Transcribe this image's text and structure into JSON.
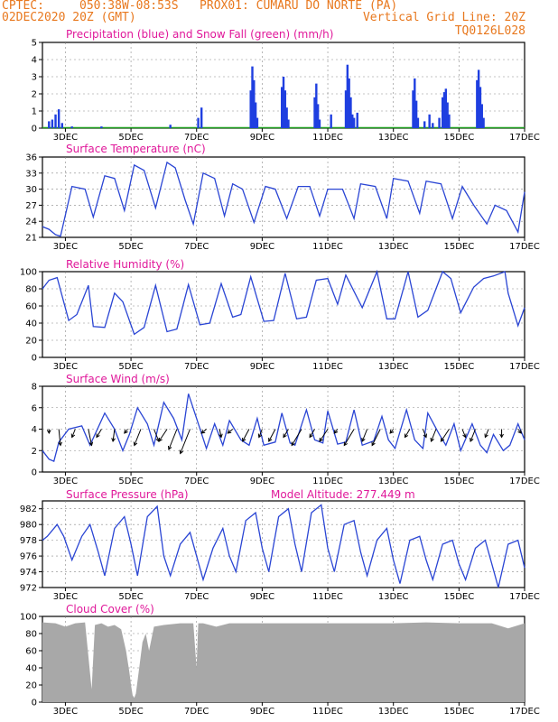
{
  "header": {
    "source": "CPTEC:",
    "location": "050:38W-08:53S   PROX01: CUMARU DO NORTE (PA)",
    "run": "02DEC2020 20Z (GMT)",
    "grid": "Vertical Grid Line: 20Z",
    "model": "TQ0126L028"
  },
  "x_ticks": [
    "3DEC",
    "5DEC",
    "7DEC",
    "9DEC",
    "11DEC",
    "13DEC",
    "15DEC",
    "17DEC"
  ],
  "chart_data": [
    {
      "id": "precip",
      "type": "bar",
      "title": "Precipitation (blue) and Snow Fall (green) (mm/h)",
      "ylim": [
        0,
        5
      ],
      "yticks": [
        0,
        1,
        2,
        3,
        4,
        5
      ],
      "color": "#1f3fe0",
      "snow_color": "#1fa01f",
      "x_range": [
        2.3,
        17.0
      ],
      "events": [
        {
          "x": 2.5,
          "v": 0.4
        },
        {
          "x": 2.6,
          "v": 0.5
        },
        {
          "x": 2.7,
          "v": 0.8
        },
        {
          "x": 2.8,
          "v": 1.1
        },
        {
          "x": 2.9,
          "v": 0.3
        },
        {
          "x": 3.2,
          "v": 0.1
        },
        {
          "x": 4.1,
          "v": 0.1
        },
        {
          "x": 6.2,
          "v": 0.2
        },
        {
          "x": 7.05,
          "v": 0.6
        },
        {
          "x": 7.15,
          "v": 1.2
        },
        {
          "x": 8.65,
          "v": 2.2
        },
        {
          "x": 8.7,
          "v": 3.6
        },
        {
          "x": 8.75,
          "v": 2.8
        },
        {
          "x": 8.8,
          "v": 1.5
        },
        {
          "x": 8.85,
          "v": 0.6
        },
        {
          "x": 9.6,
          "v": 2.4
        },
        {
          "x": 9.65,
          "v": 3.0
        },
        {
          "x": 9.7,
          "v": 2.2
        },
        {
          "x": 9.75,
          "v": 1.2
        },
        {
          "x": 9.8,
          "v": 0.5
        },
        {
          "x": 10.6,
          "v": 1.8
        },
        {
          "x": 10.65,
          "v": 2.6
        },
        {
          "x": 10.7,
          "v": 1.4
        },
        {
          "x": 10.75,
          "v": 0.5
        },
        {
          "x": 11.1,
          "v": 0.8
        },
        {
          "x": 11.55,
          "v": 2.2
        },
        {
          "x": 11.6,
          "v": 3.7
        },
        {
          "x": 11.65,
          "v": 2.9
        },
        {
          "x": 11.7,
          "v": 1.8
        },
        {
          "x": 11.75,
          "v": 0.8
        },
        {
          "x": 11.8,
          "v": 0.6
        },
        {
          "x": 11.9,
          "v": 0.9
        },
        {
          "x": 13.6,
          "v": 2.2
        },
        {
          "x": 13.65,
          "v": 2.9
        },
        {
          "x": 13.7,
          "v": 1.6
        },
        {
          "x": 13.75,
          "v": 0.6
        },
        {
          "x": 13.95,
          "v": 0.4
        },
        {
          "x": 14.1,
          "v": 0.8
        },
        {
          "x": 14.2,
          "v": 0.3
        },
        {
          "x": 14.4,
          "v": 0.6
        },
        {
          "x": 14.5,
          "v": 1.8
        },
        {
          "x": 14.55,
          "v": 2.1
        },
        {
          "x": 14.6,
          "v": 2.3
        },
        {
          "x": 14.65,
          "v": 1.5
        },
        {
          "x": 14.7,
          "v": 0.8
        },
        {
          "x": 15.55,
          "v": 2.8
        },
        {
          "x": 15.6,
          "v": 3.4
        },
        {
          "x": 15.65,
          "v": 2.4
        },
        {
          "x": 15.7,
          "v": 1.4
        },
        {
          "x": 15.75,
          "v": 0.6
        }
      ]
    },
    {
      "id": "temp",
      "type": "line",
      "title": "Surface Temperature (nC)",
      "ylim": [
        21,
        36
      ],
      "yticks": [
        21,
        24,
        27,
        30,
        33,
        36
      ],
      "color": "#2a45d4",
      "x": [
        2.3,
        2.5,
        2.7,
        2.85,
        3.2,
        3.6,
        3.85,
        4.2,
        4.5,
        4.8,
        5.1,
        5.4,
        5.75,
        6.1,
        6.35,
        6.65,
        6.9,
        7.2,
        7.55,
        7.85,
        8.1,
        8.4,
        8.75,
        9.1,
        9.4,
        9.75,
        10.1,
        10.45,
        10.75,
        11.0,
        11.45,
        11.8,
        12.0,
        12.45,
        12.8,
        13.0,
        13.45,
        13.8,
        14.0,
        14.45,
        14.8,
        15.1,
        15.45,
        15.85,
        16.1,
        16.45,
        16.8,
        17.0
      ],
      "y": [
        23,
        22.5,
        21.5,
        21.2,
        30.5,
        30,
        24.8,
        32.5,
        32,
        26,
        34.5,
        33.5,
        26.5,
        35,
        34,
        28,
        23.5,
        33,
        32,
        25,
        31,
        30,
        23.8,
        30.5,
        30,
        24.5,
        30.5,
        30.5,
        25,
        30,
        30,
        24.5,
        31,
        30.5,
        24.5,
        32,
        31.5,
        25.5,
        31.5,
        31,
        24.5,
        30.5,
        27,
        23.5,
        27,
        26,
        22,
        29.5
      ]
    },
    {
      "id": "rh",
      "type": "line",
      "title": "Relative Humidity (%)",
      "ylim": [
        0,
        100
      ],
      "yticks": [
        0,
        20,
        40,
        60,
        80,
        100
      ],
      "color": "#2a45d4",
      "x": [
        2.3,
        2.5,
        2.75,
        3.1,
        3.35,
        3.7,
        3.85,
        4.2,
        4.5,
        4.75,
        5.1,
        5.4,
        5.75,
        6.1,
        6.4,
        6.75,
        7.1,
        7.4,
        7.75,
        8.1,
        8.35,
        8.65,
        9.05,
        9.35,
        9.7,
        10.05,
        10.35,
        10.65,
        11.0,
        11.3,
        11.55,
        12.05,
        12.5,
        12.8,
        13.05,
        13.45,
        13.75,
        14.05,
        14.5,
        14.75,
        15.05,
        15.45,
        15.75,
        16.05,
        16.4,
        16.5,
        16.8,
        17.0
      ],
      "y": [
        80,
        90,
        93,
        43,
        50,
        84,
        36,
        35,
        75,
        65,
        27,
        35,
        84,
        30,
        33,
        85,
        38,
        40,
        86,
        47,
        50,
        94,
        42,
        43,
        98,
        45,
        47,
        90,
        92,
        62,
        96,
        58,
        100,
        45,
        45,
        100,
        47,
        55,
        100,
        92,
        52,
        82,
        92,
        95,
        100,
        75,
        37,
        58
      ]
    },
    {
      "id": "wind",
      "type": "line",
      "title": "Surface Wind (m/s)",
      "ylim": [
        0,
        8
      ],
      "yticks": [
        0,
        2,
        4,
        6,
        8
      ],
      "color": "#2a45d4",
      "x": [
        2.3,
        2.5,
        2.65,
        2.8,
        3.1,
        3.5,
        3.75,
        4.2,
        4.5,
        4.75,
        4.95,
        5.2,
        5.5,
        5.7,
        6.0,
        6.3,
        6.55,
        6.75,
        7.0,
        7.3,
        7.55,
        7.8,
        8.0,
        8.35,
        8.6,
        8.85,
        9.05,
        9.4,
        9.6,
        9.85,
        10.0,
        10.35,
        10.6,
        10.85,
        11.0,
        11.3,
        11.55,
        11.8,
        12.05,
        12.4,
        12.65,
        12.85,
        13.05,
        13.4,
        13.65,
        13.9,
        14.05,
        14.4,
        14.6,
        14.85,
        15.05,
        15.4,
        15.65,
        15.85,
        16.05,
        16.35,
        16.55,
        16.8,
        17.0
      ],
      "y": [
        2.0,
        1.2,
        1.0,
        2.8,
        4.0,
        4.3,
        2.5,
        5.5,
        4.0,
        2.0,
        3.5,
        6.0,
        4.5,
        2.5,
        6.5,
        5.0,
        3.0,
        7.3,
        5.0,
        2.2,
        4.5,
        2.5,
        4.8,
        3.0,
        2.5,
        5.0,
        2.5,
        2.8,
        5.5,
        2.7,
        2.5,
        5.8,
        3.0,
        2.7,
        5.7,
        2.6,
        2.8,
        5.8,
        2.5,
        2.9,
        5.2,
        3.0,
        2.2,
        5.8,
        3.0,
        2.2,
        5.5,
        3.5,
        2.5,
        4.5,
        2.0,
        4.5,
        2.5,
        1.8,
        3.5,
        2.0,
        2.5,
        4.5,
        3.0
      ]
    },
    {
      "id": "pres",
      "type": "line",
      "title": "Surface Pressure (hPa)",
      "annotation": "Model Altitude: 277.449 m",
      "ylim": [
        972,
        983
      ],
      "yticks": [
        972,
        974,
        976,
        978,
        980,
        982
      ],
      "color": "#2a45d4",
      "x": [
        2.3,
        2.45,
        2.75,
        2.95,
        3.2,
        3.5,
        3.75,
        4.0,
        4.2,
        4.5,
        4.8,
        5.0,
        5.2,
        5.5,
        5.8,
        6.0,
        6.2,
        6.5,
        6.8,
        7.0,
        7.2,
        7.5,
        7.8,
        8.0,
        8.2,
        8.5,
        8.8,
        9.0,
        9.2,
        9.5,
        9.8,
        10.0,
        10.2,
        10.5,
        10.8,
        11.0,
        11.2,
        11.5,
        11.8,
        12.0,
        12.2,
        12.5,
        12.8,
        13.0,
        13.2,
        13.5,
        13.8,
        14.0,
        14.2,
        14.5,
        14.8,
        15.0,
        15.2,
        15.5,
        15.8,
        16.0,
        16.2,
        16.5,
        16.8,
        17.0
      ],
      "y": [
        978.0,
        978.5,
        980.0,
        978.5,
        975.5,
        978.5,
        980.0,
        976.5,
        973.5,
        979.5,
        981.0,
        977.5,
        973.5,
        981.0,
        982.3,
        976.0,
        973.5,
        977.5,
        979.0,
        976.0,
        973.0,
        977.0,
        979.5,
        976.0,
        974.0,
        980.5,
        981.5,
        977.0,
        974.0,
        981.0,
        982.0,
        977.5,
        974.0,
        981.5,
        982.5,
        977.0,
        974.0,
        980.0,
        980.5,
        976.5,
        973.5,
        978.0,
        979.5,
        975.5,
        972.5,
        978.0,
        978.5,
        975.5,
        973.0,
        977.5,
        978.0,
        975.0,
        973.0,
        977.0,
        978.0,
        975.0,
        972.0,
        977.5,
        978.0,
        974.5
      ]
    },
    {
      "id": "cloud",
      "type": "area",
      "title": "Cloud Cover (%)",
      "ylim": [
        0,
        100
      ],
      "yticks": [
        0,
        20,
        40,
        60,
        80,
        100
      ],
      "color": "#a8a8a8",
      "x": [
        2.3,
        2.7,
        3.0,
        3.3,
        3.6,
        3.8,
        3.9,
        4.1,
        4.3,
        4.5,
        4.7,
        4.85,
        4.95,
        5.0,
        5.05,
        5.1,
        5.15,
        5.25,
        5.35,
        5.45,
        5.55,
        5.7,
        6.0,
        6.5,
        6.9,
        7.0,
        7.05,
        7.2,
        7.6,
        8.0,
        9.0,
        10.0,
        11.0,
        12.0,
        13.0,
        14.0,
        15.0,
        16.0,
        16.5,
        17.0
      ],
      "y": [
        93,
        92,
        88,
        92,
        93,
        15,
        90,
        92,
        88,
        90,
        85,
        60,
        35,
        20,
        8,
        5,
        10,
        40,
        70,
        80,
        60,
        88,
        90,
        92,
        92,
        40,
        92,
        92,
        88,
        92,
        92,
        92,
        92,
        92,
        92,
        93,
        92,
        92,
        86,
        92
      ]
    }
  ],
  "wind_arrows": [
    {
      "x": 2.5,
      "dx": 0.0,
      "dy": -0.5
    },
    {
      "x": 2.8,
      "dx": 0.1,
      "dy": -2.0
    },
    {
      "x": 3.3,
      "dx": -0.2,
      "dy": -1.0
    },
    {
      "x": 3.7,
      "dx": 0.2,
      "dy": -2.0
    },
    {
      "x": 4.1,
      "dx": -0.3,
      "dy": -1.0
    },
    {
      "x": 4.5,
      "dx": -0.1,
      "dy": -1.5
    },
    {
      "x": 4.9,
      "dx": -0.2,
      "dy": -0.5
    },
    {
      "x": 5.3,
      "dx": -0.4,
      "dy": -2.0
    },
    {
      "x": 5.7,
      "dx": 0.3,
      "dy": -1.5
    },
    {
      "x": 6.1,
      "dx": -0.5,
      "dy": -1.5
    },
    {
      "x": 6.4,
      "dx": -0.5,
      "dy": -2.5
    },
    {
      "x": 6.8,
      "dx": -0.6,
      "dy": -3.0
    },
    {
      "x": 7.3,
      "dx": -0.3,
      "dy": -0.5
    },
    {
      "x": 7.7,
      "dx": 0.1,
      "dy": -1.0
    },
    {
      "x": 8.1,
      "dx": -0.3,
      "dy": -0.5
    },
    {
      "x": 8.6,
      "dx": -0.4,
      "dy": -1.5
    },
    {
      "x": 9.0,
      "dx": -0.2,
      "dy": -1.0
    },
    {
      "x": 9.4,
      "dx": -0.4,
      "dy": -1.5
    },
    {
      "x": 9.8,
      "dx": -0.3,
      "dy": -1.0
    },
    {
      "x": 10.2,
      "dx": -0.6,
      "dy": -2.0
    },
    {
      "x": 10.6,
      "dx": -0.3,
      "dy": -1.0
    },
    {
      "x": 11.0,
      "dx": -0.5,
      "dy": -1.5
    },
    {
      "x": 11.3,
      "dx": -0.2,
      "dy": -0.5
    },
    {
      "x": 11.8,
      "dx": -0.6,
      "dy": -2.0
    },
    {
      "x": 12.2,
      "dx": -0.3,
      "dy": -1.5
    },
    {
      "x": 12.6,
      "dx": -0.5,
      "dy": -2.0
    },
    {
      "x": 13.0,
      "dx": -0.2,
      "dy": -0.5
    },
    {
      "x": 13.5,
      "dx": -0.3,
      "dy": -1.0
    },
    {
      "x": 13.9,
      "dx": 0.2,
      "dy": -1.0
    },
    {
      "x": 14.3,
      "dx": -0.3,
      "dy": -1.5
    },
    {
      "x": 14.7,
      "dx": -0.5,
      "dy": -1.5
    },
    {
      "x": 15.1,
      "dx": 0.2,
      "dy": -1.0
    },
    {
      "x": 15.5,
      "dx": -0.3,
      "dy": -1.5
    },
    {
      "x": 15.9,
      "dx": -0.2,
      "dy": -1.0
    },
    {
      "x": 16.3,
      "dx": 0.0,
      "dy": -1.0
    },
    {
      "x": 16.8,
      "dx": 0.2,
      "dy": -0.5
    }
  ]
}
